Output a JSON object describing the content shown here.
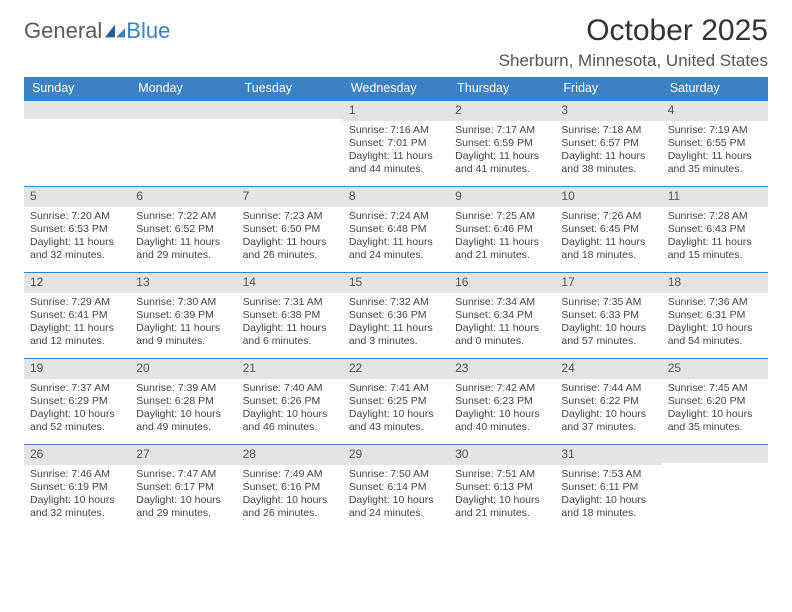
{
  "logo": {
    "text1": "General",
    "text2": "Blue"
  },
  "title": {
    "month": "October 2025",
    "location": "Sherburn, Minnesota, United States"
  },
  "colors": {
    "header_bg": "#3b82c4",
    "daynum_bg": "#e4e4e4",
    "row_border": "#3b82c4",
    "text": "#333333"
  },
  "dayHeaders": [
    "Sunday",
    "Monday",
    "Tuesday",
    "Wednesday",
    "Thursday",
    "Friday",
    "Saturday"
  ],
  "weeks": [
    [
      null,
      null,
      null,
      {
        "n": "1",
        "sr": "7:16 AM",
        "ss": "7:01 PM",
        "dh": "11",
        "dm": "44"
      },
      {
        "n": "2",
        "sr": "7:17 AM",
        "ss": "6:59 PM",
        "dh": "11",
        "dm": "41"
      },
      {
        "n": "3",
        "sr": "7:18 AM",
        "ss": "6:57 PM",
        "dh": "11",
        "dm": "38"
      },
      {
        "n": "4",
        "sr": "7:19 AM",
        "ss": "6:55 PM",
        "dh": "11",
        "dm": "35"
      }
    ],
    [
      {
        "n": "5",
        "sr": "7:20 AM",
        "ss": "6:53 PM",
        "dh": "11",
        "dm": "32"
      },
      {
        "n": "6",
        "sr": "7:22 AM",
        "ss": "6:52 PM",
        "dh": "11",
        "dm": "29"
      },
      {
        "n": "7",
        "sr": "7:23 AM",
        "ss": "6:50 PM",
        "dh": "11",
        "dm": "26"
      },
      {
        "n": "8",
        "sr": "7:24 AM",
        "ss": "6:48 PM",
        "dh": "11",
        "dm": "24"
      },
      {
        "n": "9",
        "sr": "7:25 AM",
        "ss": "6:46 PM",
        "dh": "11",
        "dm": "21"
      },
      {
        "n": "10",
        "sr": "7:26 AM",
        "ss": "6:45 PM",
        "dh": "11",
        "dm": "18"
      },
      {
        "n": "11",
        "sr": "7:28 AM",
        "ss": "6:43 PM",
        "dh": "11",
        "dm": "15"
      }
    ],
    [
      {
        "n": "12",
        "sr": "7:29 AM",
        "ss": "6:41 PM",
        "dh": "11",
        "dm": "12"
      },
      {
        "n": "13",
        "sr": "7:30 AM",
        "ss": "6:39 PM",
        "dh": "11",
        "dm": "9"
      },
      {
        "n": "14",
        "sr": "7:31 AM",
        "ss": "6:38 PM",
        "dh": "11",
        "dm": "6"
      },
      {
        "n": "15",
        "sr": "7:32 AM",
        "ss": "6:36 PM",
        "dh": "11",
        "dm": "3"
      },
      {
        "n": "16",
        "sr": "7:34 AM",
        "ss": "6:34 PM",
        "dh": "11",
        "dm": "0"
      },
      {
        "n": "17",
        "sr": "7:35 AM",
        "ss": "6:33 PM",
        "dh": "10",
        "dm": "57"
      },
      {
        "n": "18",
        "sr": "7:36 AM",
        "ss": "6:31 PM",
        "dh": "10",
        "dm": "54"
      }
    ],
    [
      {
        "n": "19",
        "sr": "7:37 AM",
        "ss": "6:29 PM",
        "dh": "10",
        "dm": "52"
      },
      {
        "n": "20",
        "sr": "7:39 AM",
        "ss": "6:28 PM",
        "dh": "10",
        "dm": "49"
      },
      {
        "n": "21",
        "sr": "7:40 AM",
        "ss": "6:26 PM",
        "dh": "10",
        "dm": "46"
      },
      {
        "n": "22",
        "sr": "7:41 AM",
        "ss": "6:25 PM",
        "dh": "10",
        "dm": "43"
      },
      {
        "n": "23",
        "sr": "7:42 AM",
        "ss": "6:23 PM",
        "dh": "10",
        "dm": "40"
      },
      {
        "n": "24",
        "sr": "7:44 AM",
        "ss": "6:22 PM",
        "dh": "10",
        "dm": "37"
      },
      {
        "n": "25",
        "sr": "7:45 AM",
        "ss": "6:20 PM",
        "dh": "10",
        "dm": "35"
      }
    ],
    [
      {
        "n": "26",
        "sr": "7:46 AM",
        "ss": "6:19 PM",
        "dh": "10",
        "dm": "32"
      },
      {
        "n": "27",
        "sr": "7:47 AM",
        "ss": "6:17 PM",
        "dh": "10",
        "dm": "29"
      },
      {
        "n": "28",
        "sr": "7:49 AM",
        "ss": "6:16 PM",
        "dh": "10",
        "dm": "26"
      },
      {
        "n": "29",
        "sr": "7:50 AM",
        "ss": "6:14 PM",
        "dh": "10",
        "dm": "24"
      },
      {
        "n": "30",
        "sr": "7:51 AM",
        "ss": "6:13 PM",
        "dh": "10",
        "dm": "21"
      },
      {
        "n": "31",
        "sr": "7:53 AM",
        "ss": "6:11 PM",
        "dh": "10",
        "dm": "18"
      },
      null
    ]
  ],
  "labels": {
    "sunrise": "Sunrise:",
    "sunset": "Sunset:",
    "daylight1": "Daylight:",
    "hours_word": "hours",
    "and_word": "and",
    "minutes_word": "minutes."
  }
}
